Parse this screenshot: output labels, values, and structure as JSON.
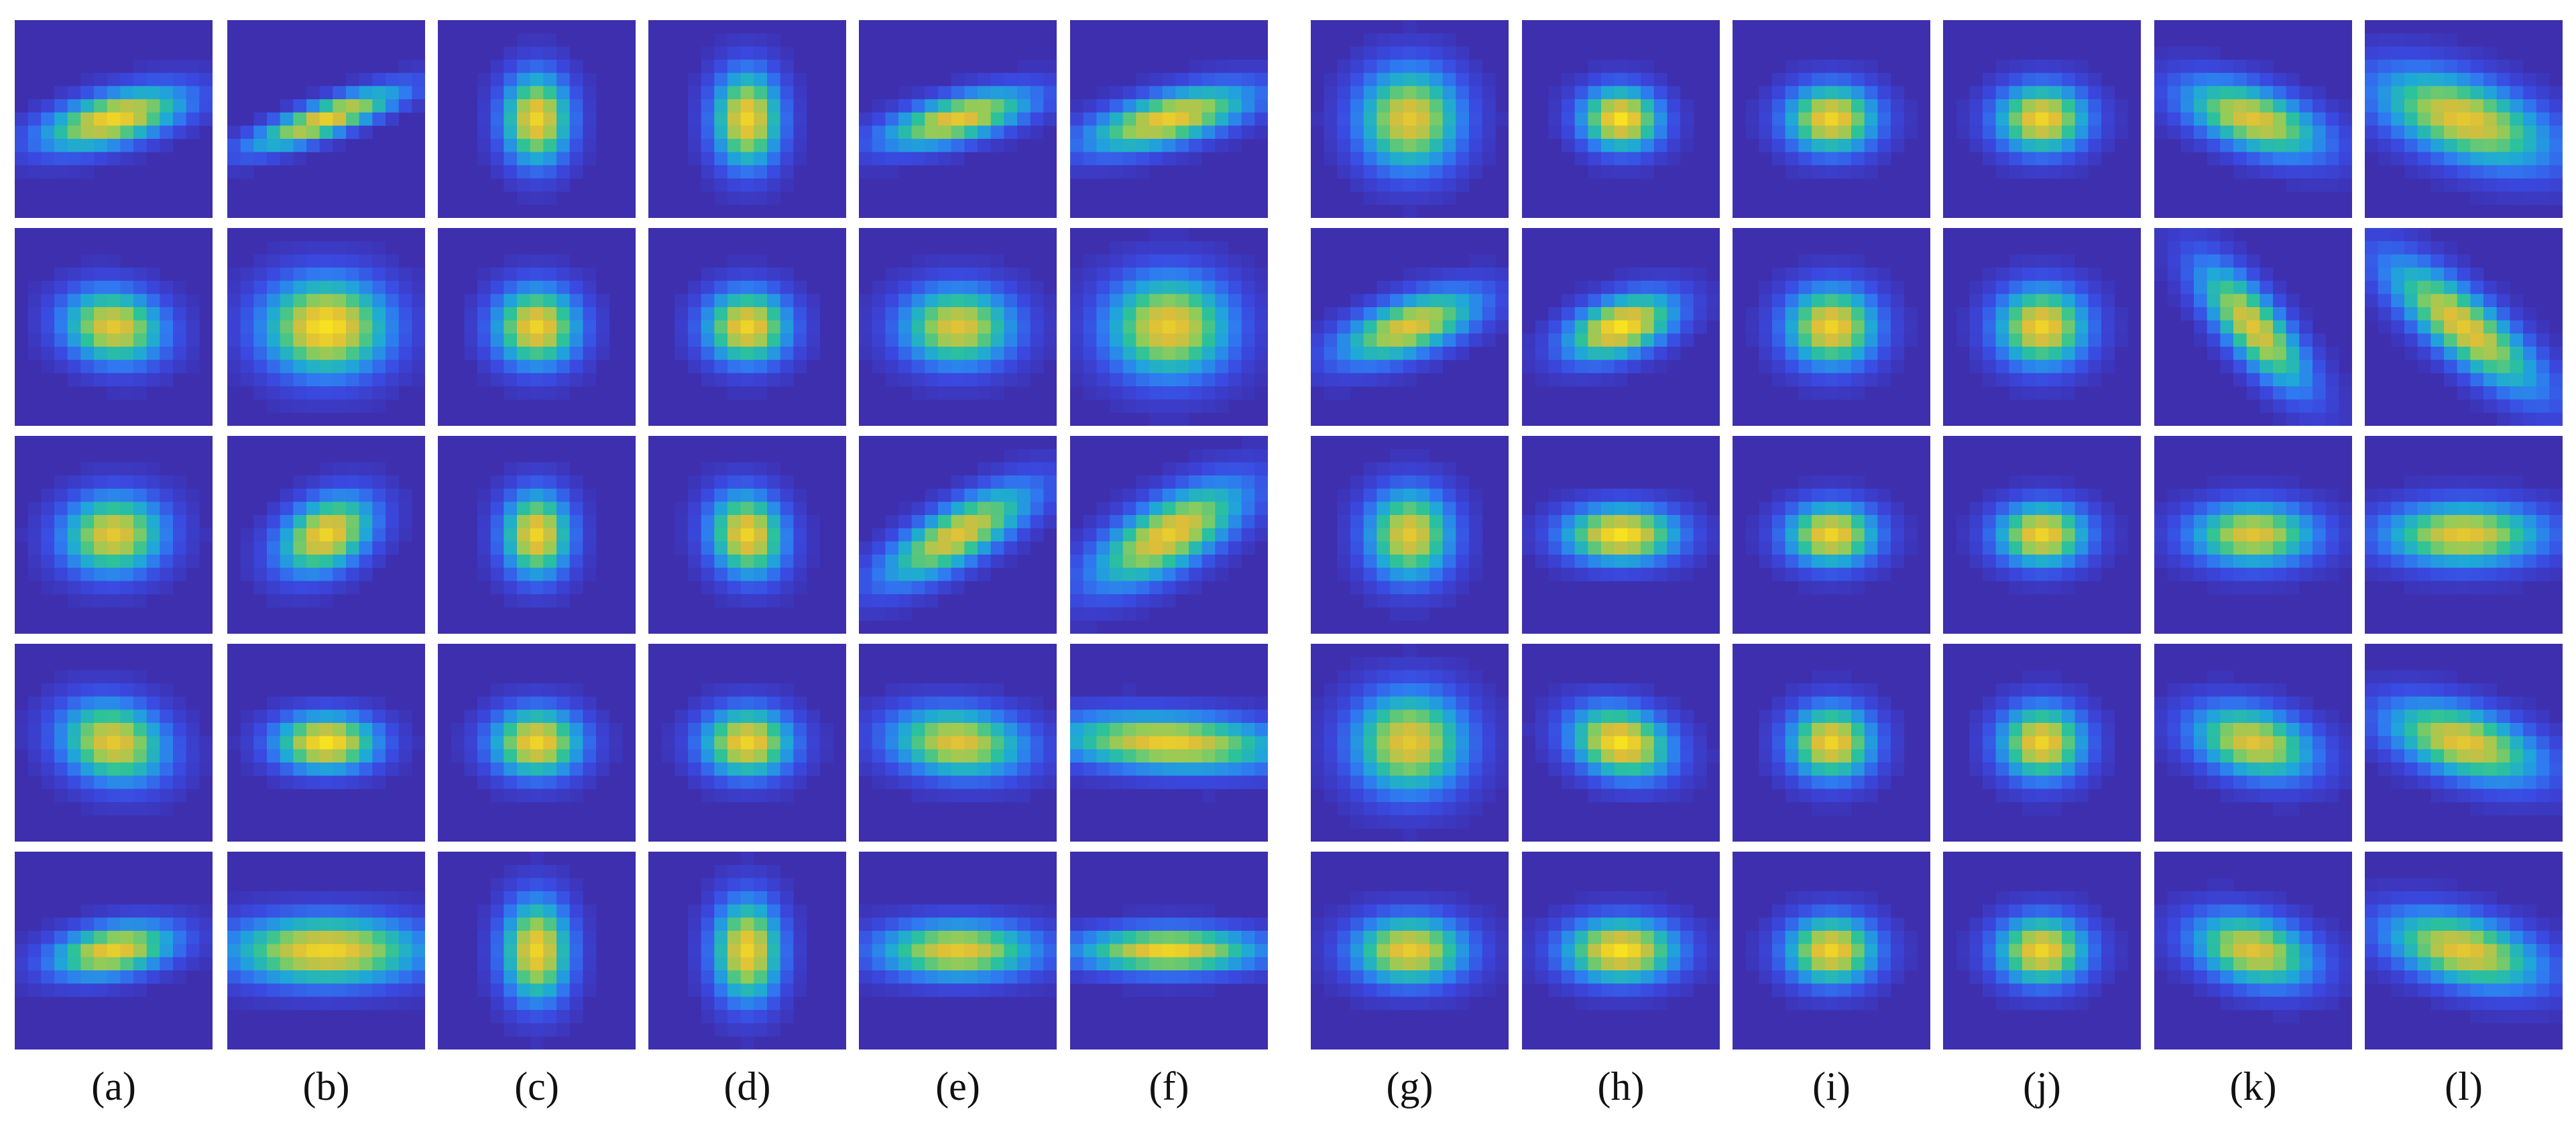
{
  "figure": {
    "column_labels": [
      "(a)",
      "(b)",
      "(c)",
      "(d)",
      "(e)",
      "(f)",
      "(g)",
      "(h)",
      "(i)",
      "(j)",
      "(k)",
      "(l)"
    ],
    "rows": 5,
    "colors": {
      "background": "#ffffff",
      "low": "#3d2fae",
      "colormap": [
        "#3d2fae",
        "#3a49e0",
        "#2f7af0",
        "#1fa8d8",
        "#2cc29a",
        "#8fcc5a",
        "#dcbd3a",
        "#f8e11e"
      ]
    },
    "grid": {
      "(a)": [
        {
          "sx": 0.09,
          "sy": 0.26,
          "rot": -75,
          "peak": 0.95
        },
        {
          "sx": 0.18,
          "sy": 0.13,
          "rot": -10,
          "peak": 0.9
        },
        {
          "sx": 0.18,
          "sy": 0.14,
          "rot": 5,
          "peak": 0.9
        },
        {
          "sx": 0.19,
          "sy": 0.14,
          "rot": -15,
          "peak": 0.9
        },
        {
          "sx": 0.09,
          "sy": 0.22,
          "rot": -80,
          "peak": 0.92
        }
      ],
      "(b)": [
        {
          "sx": 0.06,
          "sy": 0.28,
          "rot": -70,
          "peak": 0.92
        },
        {
          "sx": 0.22,
          "sy": 0.17,
          "rot": 0,
          "peak": 1.0
        },
        {
          "sx": 0.18,
          "sy": 0.12,
          "rot": 30,
          "peak": 0.95
        },
        {
          "sx": 0.18,
          "sy": 0.1,
          "rot": 0,
          "peak": 1.0
        },
        {
          "sx": 0.12,
          "sy": 0.34,
          "rot": -90,
          "peak": 0.95
        }
      ],
      "(c)": [
        {
          "sx": 0.12,
          "sy": 0.16,
          "rot": 0,
          "peak": 0.95
        },
        {
          "sx": 0.15,
          "sy": 0.14,
          "rot": 0,
          "peak": 0.95
        },
        {
          "sx": 0.12,
          "sy": 0.15,
          "rot": 0,
          "peak": 0.95
        },
        {
          "sx": 0.16,
          "sy": 0.12,
          "rot": 0,
          "peak": 0.95
        },
        {
          "sx": 0.12,
          "sy": 0.18,
          "rot": 0,
          "peak": 0.95
        }
      ],
      "(d)": [
        {
          "sx": 0.12,
          "sy": 0.17,
          "rot": 0,
          "peak": 0.95
        },
        {
          "sx": 0.15,
          "sy": 0.13,
          "rot": 0,
          "peak": 0.95
        },
        {
          "sx": 0.13,
          "sy": 0.15,
          "rot": 20,
          "peak": 0.95
        },
        {
          "sx": 0.16,
          "sy": 0.12,
          "rot": 0,
          "peak": 0.95
        },
        {
          "sx": 0.12,
          "sy": 0.18,
          "rot": 0,
          "peak": 0.95
        }
      ],
      "(e)": [
        {
          "sx": 0.08,
          "sy": 0.27,
          "rot": -75,
          "peak": 0.9
        },
        {
          "sx": 0.2,
          "sy": 0.14,
          "rot": 0,
          "peak": 0.88
        },
        {
          "sx": 0.3,
          "sy": 0.1,
          "rot": 30,
          "peak": 0.88
        },
        {
          "sx": 0.24,
          "sy": 0.12,
          "rot": -5,
          "peak": 0.88
        },
        {
          "sx": 0.1,
          "sy": 0.28,
          "rot": -90,
          "peak": 0.9
        }
      ],
      "(f)": [
        {
          "sx": 0.09,
          "sy": 0.3,
          "rot": -75,
          "peak": 0.92
        },
        {
          "sx": 0.22,
          "sy": 0.18,
          "rot": 0,
          "peak": 0.92
        },
        {
          "sx": 0.3,
          "sy": 0.12,
          "rot": 30,
          "peak": 0.92
        },
        {
          "sx": 0.4,
          "sy": 0.1,
          "rot": -3,
          "peak": 0.92
        },
        {
          "sx": 0.08,
          "sy": 0.32,
          "rot": -90,
          "peak": 0.95
        }
      ],
      "(g)": [
        {
          "sx": 0.18,
          "sy": 0.18,
          "rot": 0,
          "peak": 0.9
        },
        {
          "sx": 0.1,
          "sy": 0.26,
          "rot": -70,
          "peak": 0.88
        },
        {
          "sx": 0.15,
          "sy": 0.16,
          "rot": 0,
          "peak": 0.9
        },
        {
          "sx": 0.2,
          "sy": 0.18,
          "rot": 0,
          "peak": 0.9
        },
        {
          "sx": 0.2,
          "sy": 0.12,
          "rot": 0,
          "peak": 0.92
        }
      ],
      "(h)": [
        {
          "sx": 0.14,
          "sy": 0.11,
          "rot": -5,
          "peak": 1.0
        },
        {
          "sx": 0.1,
          "sy": 0.2,
          "rot": -70,
          "peak": 1.0
        },
        {
          "sx": 0.2,
          "sy": 0.1,
          "rot": 0,
          "peak": 1.0
        },
        {
          "sx": 0.18,
          "sy": 0.12,
          "rot": -15,
          "peak": 1.0
        },
        {
          "sx": 0.2,
          "sy": 0.11,
          "rot": 0,
          "peak": 1.0
        }
      ],
      "(i)": [
        {
          "sx": 0.16,
          "sy": 0.12,
          "rot": 0,
          "peak": 0.95
        },
        {
          "sx": 0.16,
          "sy": 0.14,
          "rot": 0,
          "peak": 0.95
        },
        {
          "sx": 0.16,
          "sy": 0.11,
          "rot": 0,
          "peak": 0.95
        },
        {
          "sx": 0.15,
          "sy": 0.13,
          "rot": 0,
          "peak": 0.95
        },
        {
          "sx": 0.16,
          "sy": 0.12,
          "rot": 0,
          "peak": 0.95
        }
      ],
      "(j)": [
        {
          "sx": 0.16,
          "sy": 0.12,
          "rot": 0,
          "peak": 0.95
        },
        {
          "sx": 0.16,
          "sy": 0.14,
          "rot": 0,
          "peak": 0.95
        },
        {
          "sx": 0.16,
          "sy": 0.11,
          "rot": 0,
          "peak": 0.95
        },
        {
          "sx": 0.15,
          "sy": 0.13,
          "rot": 0,
          "peak": 0.95
        },
        {
          "sx": 0.16,
          "sy": 0.12,
          "rot": 0,
          "peak": 0.95
        }
      ],
      "(k)": [
        {
          "sx": 0.26,
          "sy": 0.11,
          "rot": -20,
          "peak": 0.88
        },
        {
          "sx": 0.28,
          "sy": 0.1,
          "rot": -50,
          "peak": 0.88
        },
        {
          "sx": 0.22,
          "sy": 0.11,
          "rot": 0,
          "peak": 0.88
        },
        {
          "sx": 0.22,
          "sy": 0.12,
          "rot": -15,
          "peak": 0.88
        },
        {
          "sx": 0.22,
          "sy": 0.12,
          "rot": -15,
          "peak": 0.88
        }
      ],
      "(l)": [
        {
          "sx": 0.32,
          "sy": 0.14,
          "rot": -20,
          "peak": 0.9
        },
        {
          "sx": 0.34,
          "sy": 0.11,
          "rot": -40,
          "peak": 0.9
        },
        {
          "sx": 0.28,
          "sy": 0.11,
          "rot": 0,
          "peak": 0.9
        },
        {
          "sx": 0.28,
          "sy": 0.12,
          "rot": -18,
          "peak": 0.9
        },
        {
          "sx": 0.28,
          "sy": 0.12,
          "rot": -15,
          "peak": 0.9
        }
      ]
    }
  }
}
